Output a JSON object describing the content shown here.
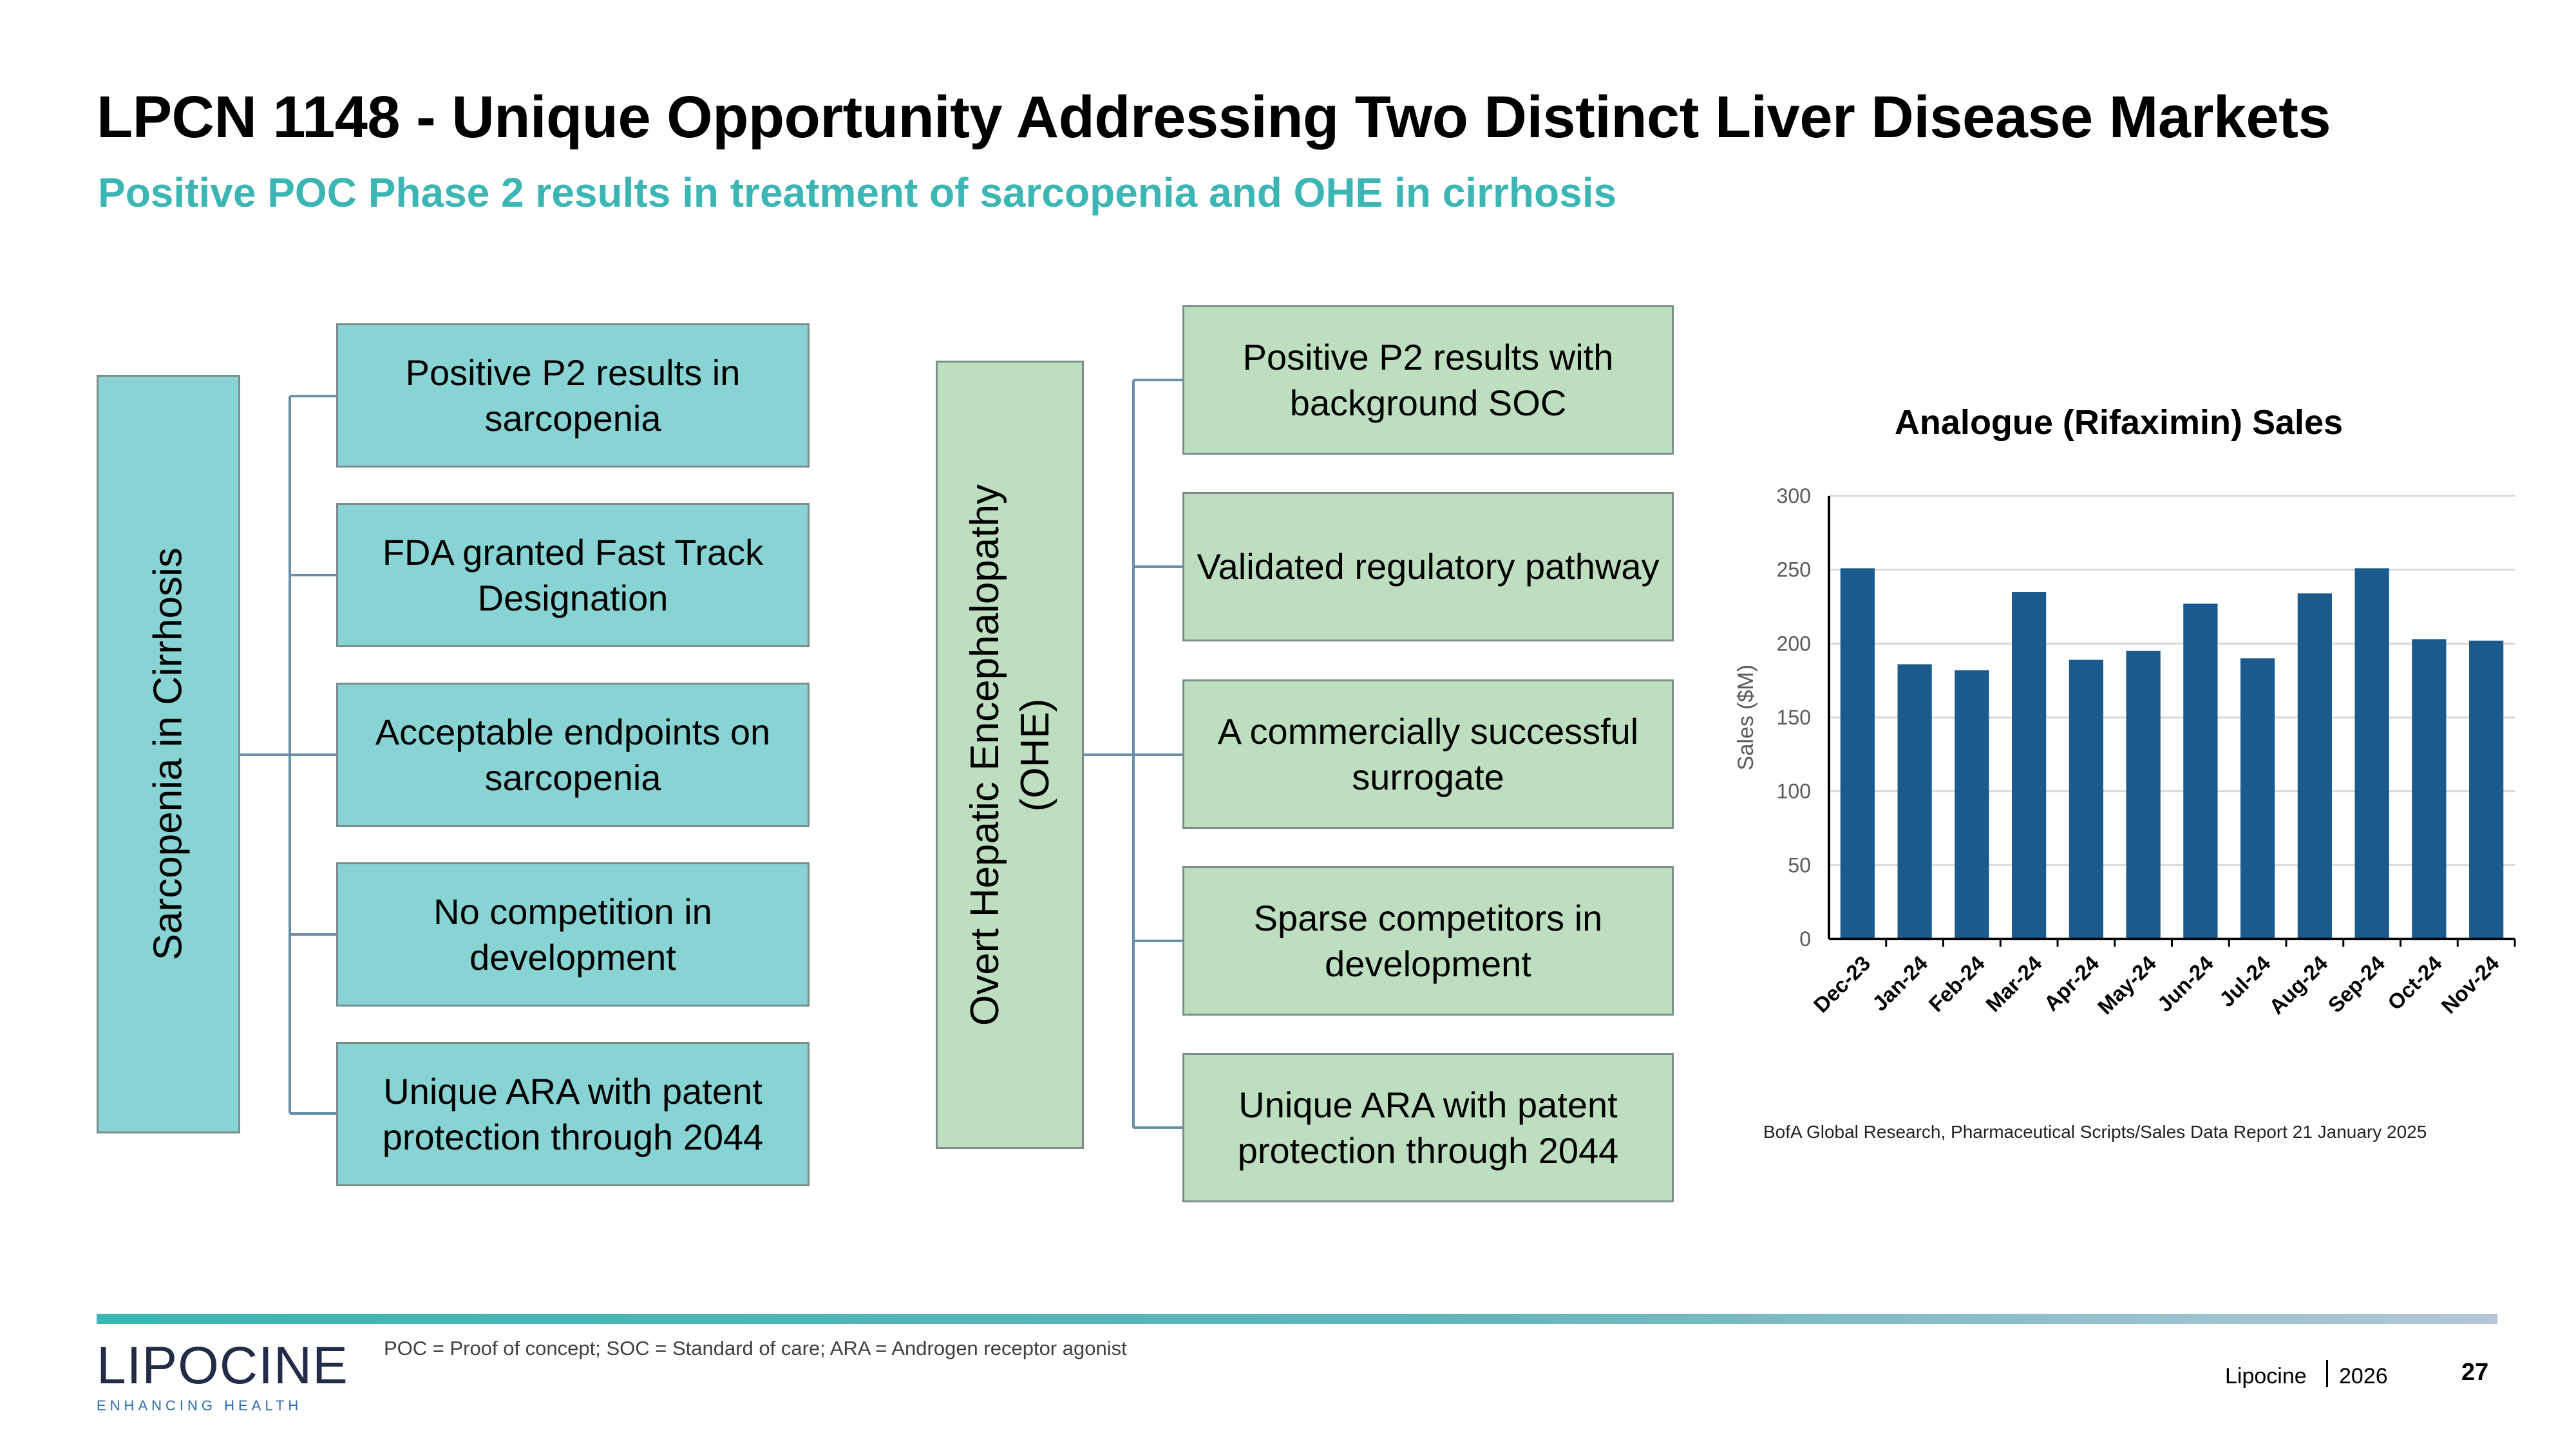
{
  "slide": {
    "title": "LPCN 1148 - Unique Opportunity Addressing Two Distinct Liver Disease Markets",
    "subtitle": "Positive POC Phase 2 results in treatment of sarcopenia and OHE in cirrhosis"
  },
  "diagram_left": {
    "root": "Sarcopenia in Cirrhosis",
    "items": [
      "Positive P2 results in sarcopenia",
      "FDA granted Fast Track Designation",
      "Acceptable endpoints on sarcopenia",
      "No competition in development",
      "Unique ARA with patent protection through 2044"
    ]
  },
  "diagram_right": {
    "root_line1": "Overt Hepatic Encephalopathy",
    "root_line2": "(OHE)",
    "items": [
      "Positive P2 results with background SOC",
      "Validated regulatory pathway",
      "A commercially successful surrogate",
      "Sparse competitors in development",
      "Unique ARA with patent protection through 2044"
    ]
  },
  "chart_data": {
    "type": "bar",
    "title": "Analogue (Rifaximin) Sales",
    "ylabel": "Sales ($M)",
    "xlabel": "",
    "ylim": [
      0,
      300
    ],
    "yticks": [
      0,
      50,
      100,
      150,
      200,
      250,
      300
    ],
    "grid": true,
    "categories": [
      "Dec-23",
      "Jan-24",
      "Feb-24",
      "Mar-24",
      "Apr-24",
      "May-24",
      "Jun-24",
      "Jul-24",
      "Aug-24",
      "Sep-24",
      "Oct-24",
      "Nov-24"
    ],
    "values": [
      251,
      186,
      182,
      235,
      189,
      195,
      227,
      190,
      234,
      251,
      203,
      202
    ],
    "bar_color": "#1b5a8c",
    "grid_color": "#d9d9d9"
  },
  "chart_source": "BofA Global Research, Pharmaceutical Scripts/Sales Data Report  21 January 2025",
  "footnote": "POC = Proof of concept; SOC = Standard of care; ARA = Androgen receptor agonist",
  "footer": {
    "company": "Lipocine",
    "year": "2026",
    "page": "27",
    "logo_word": "LIPOCINE",
    "logo_tagline": "ENHANCING HEALTH"
  },
  "colors": {
    "accent": "#3bb6b4",
    "teal_box": "#88d4d4",
    "green_box": "#bedfbf",
    "connector": "#6a8fa8"
  }
}
